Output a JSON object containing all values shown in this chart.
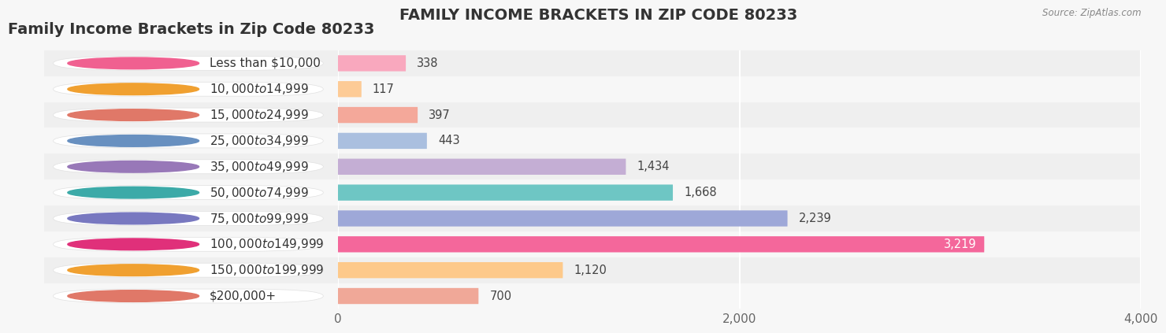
{
  "title": "Family Income Brackets in Zip Code 80233",
  "source": "Source: ZipAtlas.com",
  "categories": [
    "Less than $10,000",
    "$10,000 to $14,999",
    "$15,000 to $24,999",
    "$25,000 to $34,999",
    "$35,000 to $49,999",
    "$50,000 to $74,999",
    "$75,000 to $99,999",
    "$100,000 to $149,999",
    "$150,000 to $199,999",
    "$200,000+"
  ],
  "values": [
    338,
    117,
    397,
    443,
    1434,
    1668,
    2239,
    3219,
    1120,
    700
  ],
  "bar_colors": [
    "#F9A8BE",
    "#FDCB96",
    "#F4A89A",
    "#AABFDF",
    "#C4AED4",
    "#6EC6C4",
    "#9EA8D8",
    "#F4679B",
    "#FDC98A",
    "#F0A898"
  ],
  "dot_colors": [
    "#F06090",
    "#F0A030",
    "#E07868",
    "#6890C0",
    "#9878B8",
    "#3CAAA8",
    "#7878C0",
    "#E0307A",
    "#F0A030",
    "#E07868"
  ],
  "background_color": "#f7f7f7",
  "row_even_color": "#efefef",
  "row_odd_color": "#f7f7f7",
  "xlim": [
    0,
    4000
  ],
  "xticks": [
    0,
    2000,
    4000
  ],
  "title_fontsize": 14,
  "label_fontsize": 11,
  "value_fontsize": 10.5,
  "tick_fontsize": 11
}
